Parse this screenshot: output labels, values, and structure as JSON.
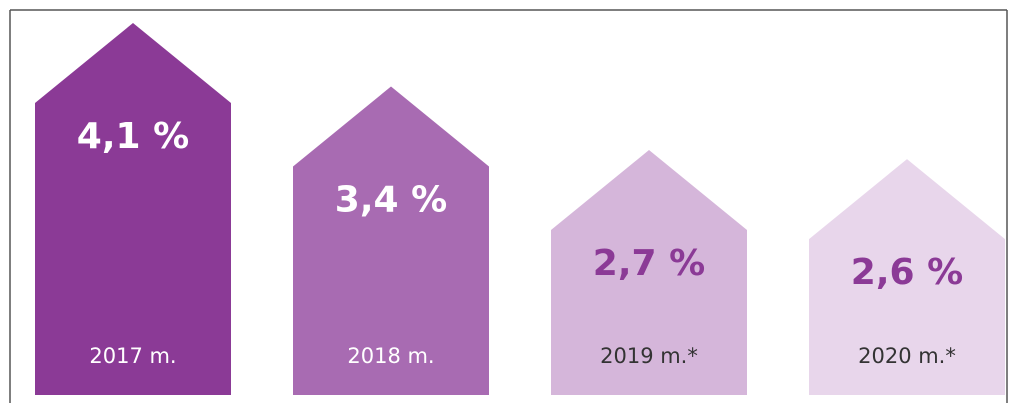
{
  "chart_data": {
    "type": "house-bar",
    "categories": [
      "2017 m.",
      "2018 m.",
      "2019 m.*",
      "2020 m.*"
    ],
    "values": [
      4.1,
      3.4,
      2.7,
      2.6
    ],
    "value_labels": [
      "4,1 %",
      "3,4 %",
      "2,7 %",
      "2,6 %"
    ],
    "colors": [
      "#8b3a96",
      "#a86bb2",
      "#d5b6da",
      "#e8d6eb"
    ],
    "label_colors": [
      "#ffffff",
      "#ffffff",
      "#8b3a96",
      "#8b3a96"
    ],
    "category_label_colors": [
      "#ffffff",
      "#ffffff",
      "#333333",
      "#333333"
    ]
  }
}
